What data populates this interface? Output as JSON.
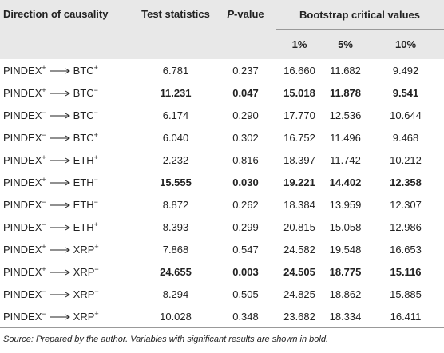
{
  "table": {
    "header": {
      "direction": "Direction of causality",
      "test": "Test statistics",
      "p_value": {
        "italic": "P",
        "rest": "-value"
      },
      "bootstrap": "Bootstrap critical values",
      "levels": [
        "1%",
        "5%",
        "10%"
      ]
    },
    "rows": [
      {
        "from": "PINDEX",
        "from_sign": "+",
        "to": "BTC",
        "to_sign": "+",
        "values": [
          "6.781",
          "0.237",
          "16.660",
          "11.682",
          "9.492"
        ]
      },
      {
        "from": "PINDEX",
        "from_sign": "+",
        "to": "BTC",
        "to_sign": "−",
        "values": [
          "11.231",
          "0.047",
          "15.018",
          "11.878",
          "9.541"
        ],
        "bold": true
      },
      {
        "from": "PINDEX",
        "from_sign": "−",
        "to": "BTC",
        "to_sign": "−",
        "values": [
          "6.174",
          "0.290",
          "17.770",
          "12.536",
          "10.644"
        ]
      },
      {
        "from": "PINDEX",
        "from_sign": "−",
        "to": "BTC",
        "to_sign": "+",
        "values": [
          "6.040",
          "0.302",
          "16.752",
          "11.496",
          "9.468"
        ]
      },
      {
        "from": "PINDEX",
        "from_sign": "+",
        "to": "ETH",
        "to_sign": "+",
        "values": [
          "2.232",
          "0.816",
          "18.397",
          "11.742",
          "10.212"
        ]
      },
      {
        "from": "PINDEX",
        "from_sign": "+",
        "to": "ETH",
        "to_sign": "−",
        "values": [
          "15.555",
          "0.030",
          "19.221",
          "14.402",
          "12.358"
        ],
        "bold": true
      },
      {
        "from": "PINDEX",
        "from_sign": "−",
        "to": "ETH",
        "to_sign": "−",
        "values": [
          "8.872",
          "0.262",
          "18.384",
          "13.959",
          "12.307"
        ]
      },
      {
        "from": "PINDEX",
        "from_sign": "−",
        "to": "ETH",
        "to_sign": "+",
        "values": [
          "8.393",
          "0.299",
          "20.815",
          "15.058",
          "12.986"
        ]
      },
      {
        "from": "PINDEX",
        "from_sign": "+",
        "to": "XRP",
        "to_sign": "+",
        "values": [
          "7.868",
          "0.547",
          "24.582",
          "19.548",
          "16.653"
        ]
      },
      {
        "from": "PINDEX",
        "from_sign": "+",
        "to": "XRP",
        "to_sign": "−",
        "values": [
          "24.655",
          "0.003",
          "24.505",
          "18.775",
          "15.116"
        ],
        "bold": true
      },
      {
        "from": "PINDEX",
        "from_sign": "−",
        "to": "XRP",
        "to_sign": "−",
        "values": [
          "8.294",
          "0.505",
          "24.825",
          "18.862",
          "15.885"
        ]
      },
      {
        "from": "PINDEX",
        "from_sign": "−",
        "to": "XRP",
        "to_sign": "+",
        "values": [
          "10.028",
          "0.348",
          "23.682",
          "18.334",
          "16.411"
        ]
      }
    ],
    "note": "Source: Prepared by the author. Variables with significant results are shown in bold."
  }
}
